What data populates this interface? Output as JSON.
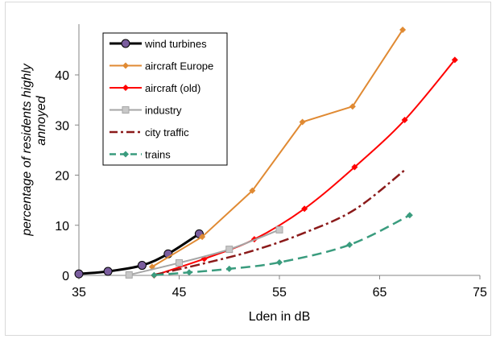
{
  "chart_data": {
    "type": "line",
    "xlabel": "Lden in dB",
    "ylabel": [
      "percentage of residents highly",
      "annoyed"
    ],
    "xlim": [
      35,
      75
    ],
    "ylim": [
      0,
      50
    ],
    "xticks": [
      35,
      45,
      55,
      65,
      75
    ],
    "yticks": [
      0,
      10,
      20,
      30,
      40
    ],
    "legend_position": "top-left",
    "series": [
      {
        "name": "wind turbines",
        "color": "#000000",
        "marker": "circle",
        "dash": "solid",
        "x": [
          35,
          37.9,
          41.3,
          43.9,
          47
        ],
        "y": [
          0.3,
          0.8,
          2.0,
          4.3,
          8.3
        ]
      },
      {
        "name": "aircraft Europe",
        "color": "#e08a33",
        "marker": "diamond",
        "dash": "solid",
        "x": [
          42.3,
          47.3,
          52.3,
          57.3,
          62.3,
          67.3
        ],
        "y": [
          1.7,
          7.7,
          16.9,
          30.6,
          33.7,
          49
        ]
      },
      {
        "name": "aircraft (old)",
        "color": "#ff0000",
        "marker": "diamond",
        "dash": "solid",
        "x": [
          42.5,
          47.5,
          52.5,
          57.5,
          62.5,
          67.5,
          72.5
        ],
        "y": [
          0,
          3.3,
          7.2,
          13.3,
          21.6,
          31,
          43
        ]
      },
      {
        "name": "industry",
        "color": "#a6a6a6",
        "marker": "square",
        "dash": "solid",
        "x": [
          40,
          45,
          50,
          55
        ],
        "y": [
          0.1,
          2.5,
          5.2,
          9.1
        ]
      },
      {
        "name": "city traffic",
        "color": "#8b1a1a",
        "marker": "none",
        "dash": "dashdot",
        "x": [
          42.5,
          47.5,
          52.5,
          57.5,
          62.5,
          67.5
        ],
        "y": [
          0.1,
          2.4,
          5.0,
          8.5,
          13.1,
          21
        ]
      },
      {
        "name": "trains",
        "color": "#3a9c7e",
        "marker": "diamond",
        "dash": "dashed",
        "x": [
          42.5,
          46,
          50,
          55,
          62,
          68
        ],
        "y": [
          0.05,
          0.6,
          1.3,
          2.6,
          6.1,
          12
        ]
      }
    ]
  }
}
